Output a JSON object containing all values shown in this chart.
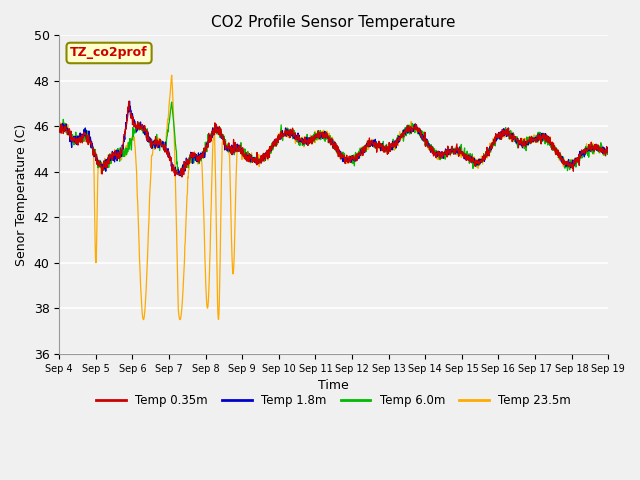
{
  "title": "CO2 Profile Sensor Temperature",
  "xlabel": "Time",
  "ylabel": "Senor Temperature (C)",
  "ylim": [
    36,
    50
  ],
  "yticks": [
    36,
    38,
    40,
    42,
    44,
    46,
    48,
    50
  ],
  "plot_bg_color": "#f0f0f0",
  "grid_color": "white",
  "colors": {
    "red": "#cc0000",
    "blue": "#0000cc",
    "green": "#00bb00",
    "orange": "#ffaa00"
  },
  "legend_labels": [
    "Temp 0.35m",
    "Temp 1.8m",
    "Temp 6.0m",
    "Temp 23.5m"
  ],
  "annotation_text": "TZ_co2prof",
  "annotation_color": "#cc0000",
  "annotation_bg": "#ffffcc",
  "annotation_border": "#888800",
  "x_tick_labels": [
    "Sep 4",
    "Sep 5",
    "Sep 6",
    "Sep 7",
    "Sep 8",
    "Sep 9",
    "Sep 10",
    "Sep 11",
    "Sep 12",
    "Sep 13",
    "Sep 14",
    "Sep 15",
    "Sep 16",
    "Sep 17",
    "Sep 18",
    "Sep 19"
  ],
  "n_points": 1500
}
